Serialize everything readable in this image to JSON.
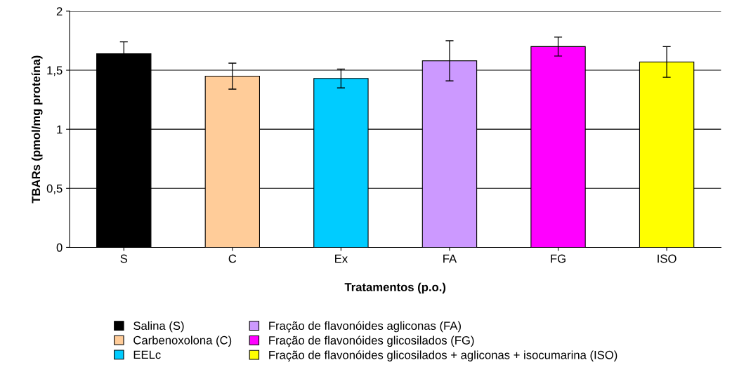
{
  "chart_data": {
    "type": "bar",
    "xlabel": "Tratamentos (p.o.)",
    "ylabel": "TBARs (pmol/mg proteína)",
    "categories": [
      "S",
      "C",
      "Ex",
      "FA",
      "FG",
      "ISO"
    ],
    "series": [
      {
        "name": "Salina (S)",
        "color": "#000000",
        "values": [
          1.64,
          null,
          null,
          null,
          null,
          null
        ],
        "errors": [
          0.1,
          null,
          null,
          null,
          null,
          null
        ]
      },
      {
        "name": "Carbenoxolona (C)",
        "color": "#ffcc99",
        "values": [
          null,
          1.45,
          null,
          null,
          null,
          null
        ],
        "errors": [
          null,
          0.11,
          null,
          null,
          null,
          null
        ]
      },
      {
        "name": "EELc",
        "color": "#00ccff",
        "values": [
          null,
          null,
          1.43,
          null,
          null,
          null
        ],
        "errors": [
          null,
          null,
          0.08,
          null,
          null,
          null
        ]
      },
      {
        "name": "Fração de flavonóides agliconas (FA)",
        "color": "#cc99ff",
        "values": [
          null,
          null,
          null,
          1.58,
          null,
          null
        ],
        "errors": [
          null,
          null,
          null,
          0.17,
          null,
          null
        ]
      },
      {
        "name": "Fração de flavonóides glicosilados (FG)",
        "color": "#ff00ff",
        "values": [
          null,
          null,
          null,
          null,
          1.7,
          null
        ],
        "errors": [
          null,
          null,
          null,
          null,
          0.08,
          null
        ]
      },
      {
        "name": "Fração de flavonóides glicosilados + agliconas + isocumarina (ISO)",
        "color": "#ffff00",
        "values": [
          null,
          null,
          null,
          null,
          null,
          1.57
        ],
        "errors": [
          null,
          null,
          null,
          null,
          null,
          0.13
        ]
      }
    ],
    "ylim": [
      0,
      2
    ],
    "yticks": [
      0,
      {
        "value": 0.5,
        "label": "0,5"
      },
      1,
      {
        "value": 1.5,
        "label": "1,5"
      },
      2
    ],
    "grid": "y",
    "legend": "bottom"
  }
}
